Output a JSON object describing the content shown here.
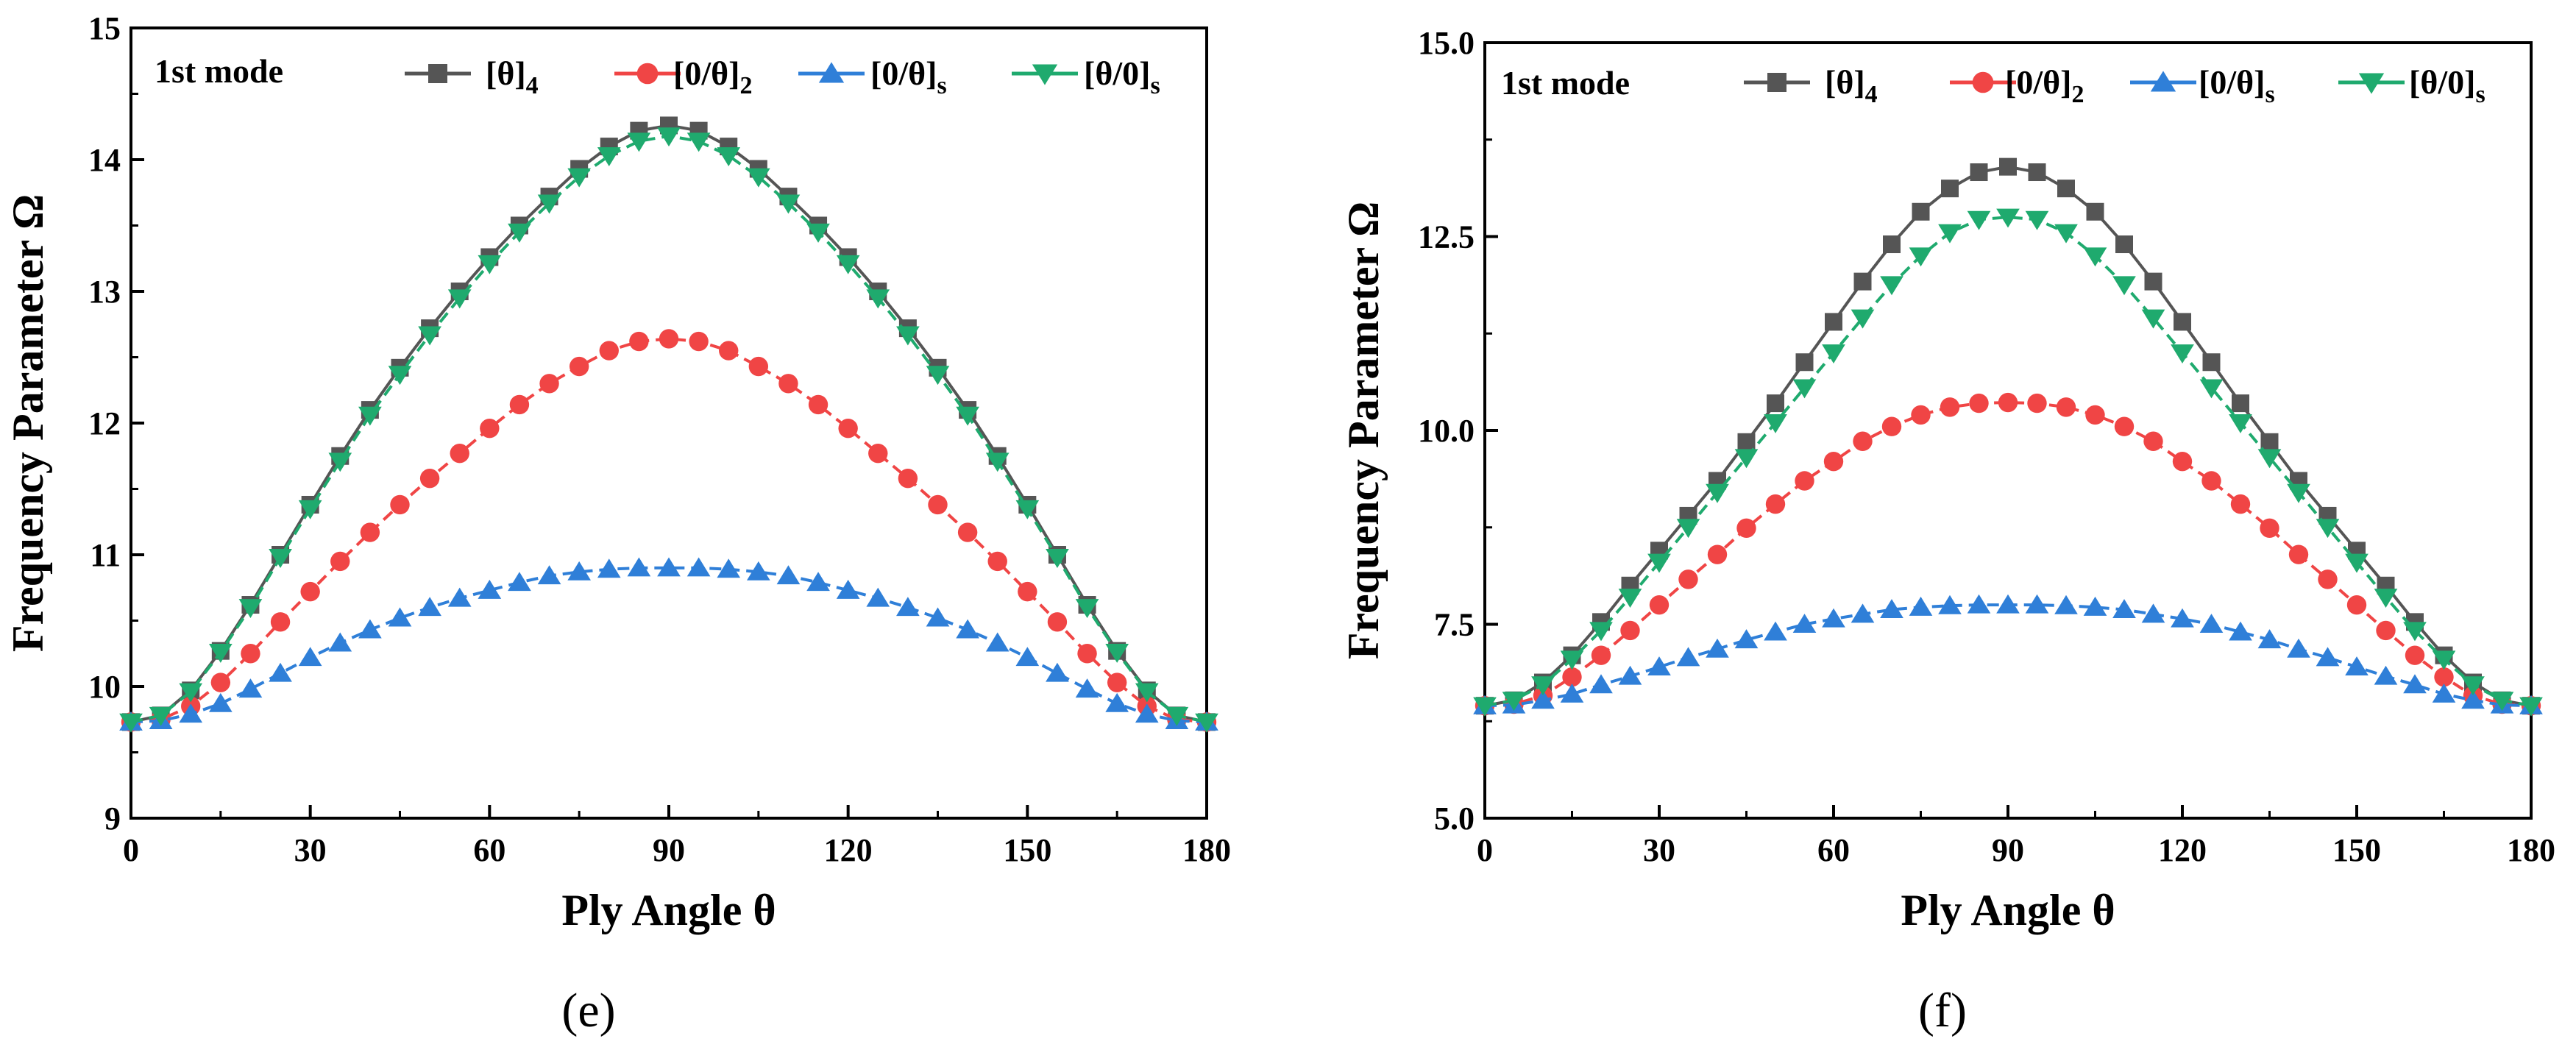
{
  "chart_data": [
    {
      "type": "line",
      "panel_label": "(e)",
      "annotation": "1st mode",
      "xlabel": "Ply Angle θ",
      "ylabel": "Frequency Parameter Ω",
      "xlim": [
        0,
        180
      ],
      "ylim": [
        9,
        15
      ],
      "x_ticks": [
        0,
        30,
        60,
        90,
        120,
        150,
        180
      ],
      "y_ticks": [
        9,
        10,
        11,
        12,
        13,
        14,
        15
      ],
      "y_tick_labels": [
        "9",
        "10",
        "11",
        "12",
        "13",
        "14",
        "15"
      ],
      "grid": false,
      "legend_position": "top",
      "x": [
        0,
        5,
        10,
        15,
        20,
        25,
        30,
        35,
        40,
        45,
        50,
        55,
        60,
        65,
        70,
        75,
        80,
        85,
        90,
        95,
        100,
        105,
        110,
        115,
        120,
        125,
        130,
        135,
        140,
        145,
        150,
        155,
        160,
        165,
        170,
        175,
        180
      ],
      "series": [
        {
          "name": "[θ]4",
          "name_main": "[θ]",
          "name_sub": "4",
          "marker": "square",
          "color": "#555555",
          "values": [
            9.73,
            9.78,
            9.97,
            10.27,
            10.62,
            11.0,
            11.38,
            11.75,
            12.1,
            12.42,
            12.72,
            13.0,
            13.26,
            13.5,
            13.72,
            13.93,
            14.1,
            14.22,
            14.26,
            14.22,
            14.1,
            13.93,
            13.72,
            13.5,
            13.26,
            13.0,
            12.72,
            12.42,
            12.1,
            11.75,
            11.38,
            11.0,
            10.62,
            10.27,
            9.97,
            9.78,
            9.73
          ]
        },
        {
          "name": "[0/θ]2",
          "name_main": "[0/θ]",
          "name_sub": "2",
          "marker": "circle",
          "color": "#f04545",
          "values": [
            9.73,
            9.75,
            9.85,
            10.03,
            10.25,
            10.49,
            10.72,
            10.95,
            11.17,
            11.38,
            11.58,
            11.77,
            11.96,
            12.14,
            12.3,
            12.43,
            12.55,
            12.62,
            12.64,
            12.62,
            12.55,
            12.43,
            12.3,
            12.14,
            11.96,
            11.77,
            11.58,
            11.38,
            11.17,
            10.95,
            10.72,
            10.49,
            10.25,
            10.03,
            9.85,
            9.75,
            9.73
          ]
        },
        {
          "name": "[0/θ]s",
          "name_main": "[0/θ]",
          "name_sub": "s",
          "marker": "triangle-up",
          "color": "#2f7fd8",
          "values": [
            9.73,
            9.74,
            9.79,
            9.87,
            9.98,
            10.1,
            10.22,
            10.33,
            10.43,
            10.52,
            10.6,
            10.67,
            10.73,
            10.79,
            10.84,
            10.87,
            10.89,
            10.9,
            10.9,
            10.9,
            10.89,
            10.87,
            10.84,
            10.79,
            10.73,
            10.67,
            10.6,
            10.52,
            10.43,
            10.33,
            10.22,
            10.1,
            9.98,
            9.87,
            9.79,
            9.74,
            9.73
          ]
        },
        {
          "name": "[θ/0]s",
          "name_main": "[θ/0]",
          "name_sub": "s",
          "marker": "triangle-down",
          "color": "#1faa6e",
          "values": [
            9.73,
            9.78,
            9.96,
            10.26,
            10.6,
            10.98,
            11.35,
            11.71,
            12.06,
            12.37,
            12.67,
            12.95,
            13.21,
            13.45,
            13.67,
            13.87,
            14.03,
            14.14,
            14.18,
            14.14,
            14.03,
            13.87,
            13.67,
            13.45,
            13.21,
            12.95,
            12.67,
            12.37,
            12.06,
            11.71,
            11.35,
            10.98,
            10.6,
            10.26,
            9.96,
            9.78,
            9.73
          ]
        }
      ]
    },
    {
      "type": "line",
      "panel_label": "(f)",
      "annotation": "1st mode",
      "xlabel": "Ply Angle θ",
      "ylabel": "Frequency Parameter Ω",
      "xlim": [
        0,
        180
      ],
      "ylim": [
        5,
        15
      ],
      "x_ticks": [
        0,
        30,
        60,
        90,
        120,
        150,
        180
      ],
      "y_ticks": [
        5,
        7.5,
        10,
        12.5,
        15
      ],
      "y_tick_labels": [
        "5.0",
        "7.5",
        "10.0",
        "12.5",
        "15.0"
      ],
      "grid": false,
      "legend_position": "top",
      "x": [
        0,
        5,
        10,
        15,
        20,
        25,
        30,
        35,
        40,
        45,
        50,
        55,
        60,
        65,
        70,
        75,
        80,
        85,
        90,
        95,
        100,
        105,
        110,
        115,
        120,
        125,
        130,
        135,
        140,
        145,
        150,
        155,
        160,
        165,
        170,
        175,
        180
      ],
      "series": [
        {
          "name": "[θ]4",
          "name_main": "[θ]",
          "name_sub": "4",
          "marker": "square",
          "color": "#555555",
          "values": [
            6.45,
            6.52,
            6.75,
            7.1,
            7.53,
            8.0,
            8.45,
            8.9,
            9.35,
            9.85,
            10.35,
            10.88,
            11.4,
            11.92,
            12.4,
            12.82,
            13.12,
            13.33,
            13.4,
            13.33,
            13.12,
            12.82,
            12.4,
            11.92,
            11.4,
            10.88,
            10.35,
            9.85,
            9.35,
            8.9,
            8.45,
            8.0,
            7.53,
            7.1,
            6.75,
            6.52,
            6.45
          ]
        },
        {
          "name": "[0/θ]2",
          "name_main": "[0/θ]",
          "name_sub": "2",
          "marker": "circle",
          "color": "#f04545",
          "values": [
            6.45,
            6.47,
            6.58,
            6.82,
            7.1,
            7.42,
            7.75,
            8.08,
            8.4,
            8.74,
            9.05,
            9.35,
            9.6,
            9.86,
            10.05,
            10.2,
            10.3,
            10.35,
            10.36,
            10.35,
            10.3,
            10.2,
            10.05,
            9.86,
            9.6,
            9.35,
            9.05,
            8.74,
            8.4,
            8.08,
            7.75,
            7.42,
            7.1,
            6.82,
            6.58,
            6.47,
            6.45
          ]
        },
        {
          "name": "[0/θ]s",
          "name_main": "[0/θ]",
          "name_sub": "s",
          "marker": "triangle-up",
          "color": "#2f7fd8",
          "values": [
            6.45,
            6.46,
            6.52,
            6.6,
            6.72,
            6.83,
            6.95,
            7.07,
            7.18,
            7.3,
            7.4,
            7.5,
            7.57,
            7.63,
            7.69,
            7.72,
            7.74,
            7.75,
            7.75,
            7.75,
            7.74,
            7.72,
            7.69,
            7.63,
            7.57,
            7.5,
            7.4,
            7.3,
            7.18,
            7.07,
            6.95,
            6.83,
            6.72,
            6.6,
            6.52,
            6.46,
            6.45
          ]
        },
        {
          "name": "[θ/0]s",
          "name_main": "[θ/0]",
          "name_sub": "s",
          "marker": "triangle-down",
          "color": "#1faa6e",
          "values": [
            6.45,
            6.52,
            6.72,
            7.05,
            7.42,
            7.85,
            8.3,
            8.75,
            9.2,
            9.65,
            10.1,
            10.55,
            11.0,
            11.45,
            11.88,
            12.25,
            12.55,
            12.72,
            12.75,
            12.72,
            12.55,
            12.25,
            11.88,
            11.45,
            11.0,
            10.55,
            10.1,
            9.65,
            9.2,
            8.75,
            8.3,
            7.85,
            7.42,
            7.05,
            6.72,
            6.52,
            6.45
          ]
        }
      ]
    }
  ]
}
